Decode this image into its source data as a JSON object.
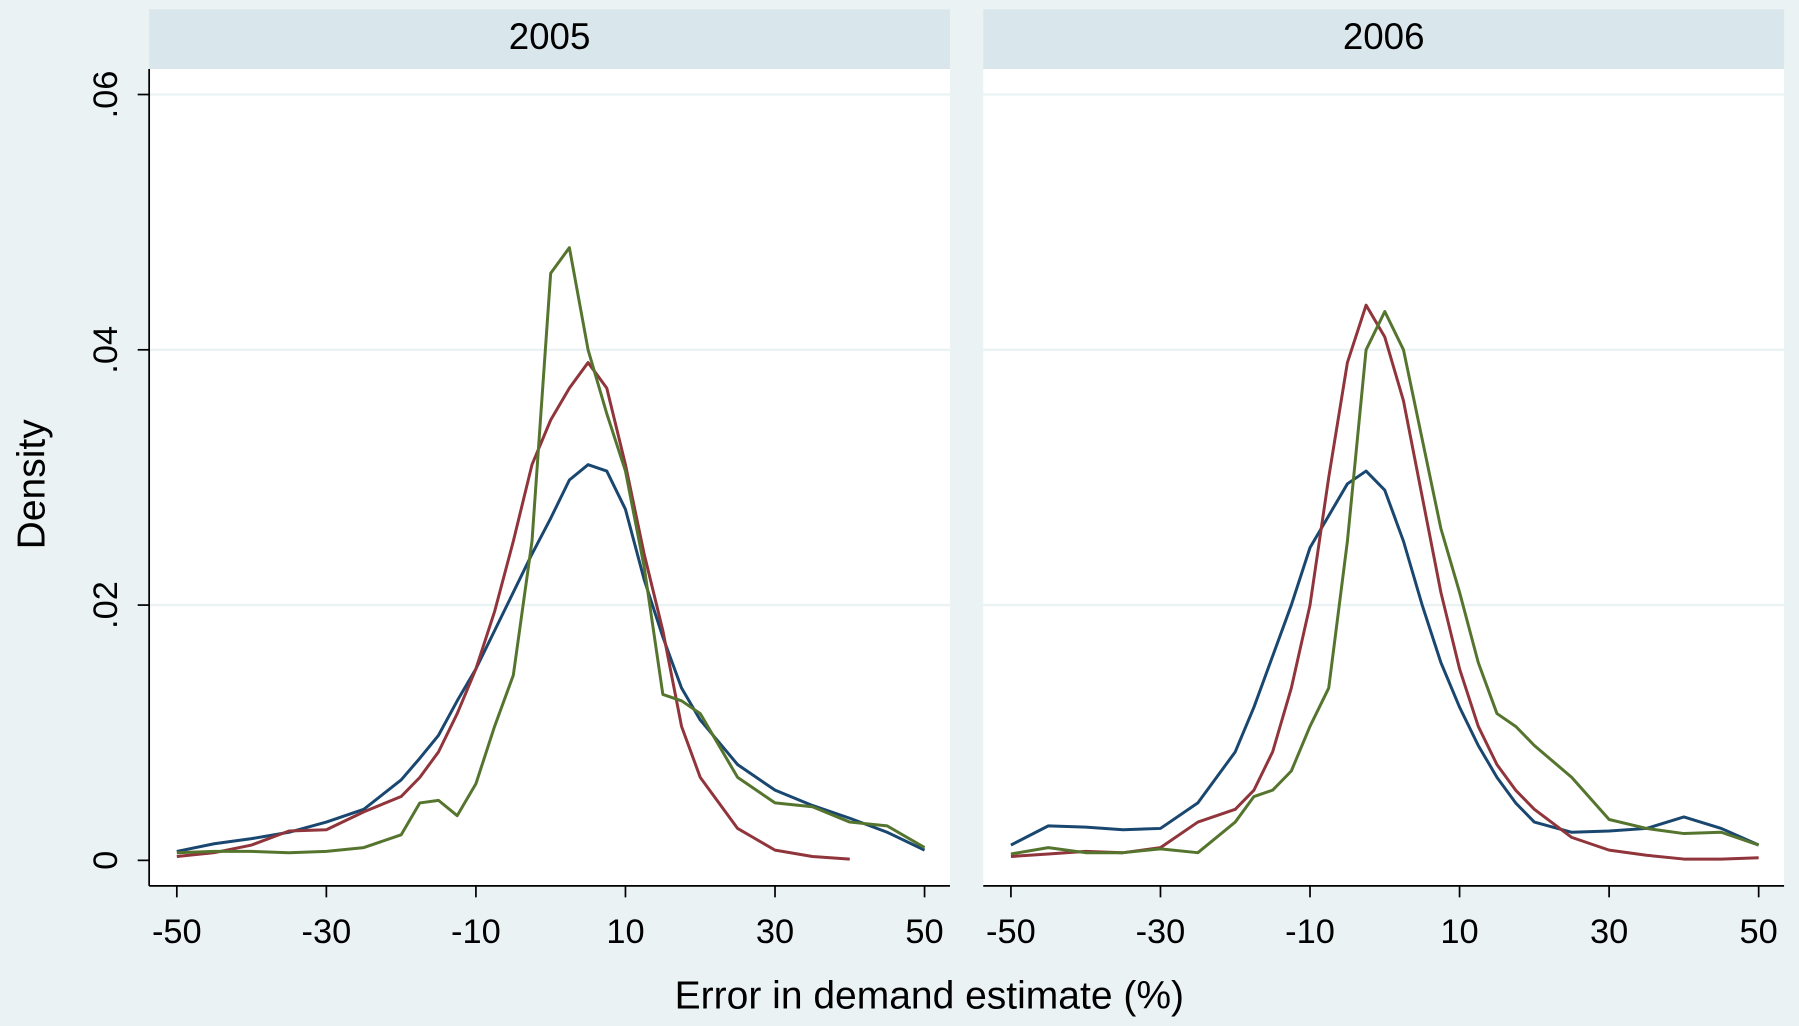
{
  "xlabel": "Error in demand estimate (%)",
  "ylabel": "Density",
  "chart_data": [
    {
      "type": "line",
      "title": "2005",
      "x": [
        -50,
        -45,
        -40,
        -35,
        -30,
        -25,
        -20,
        -17.5,
        -15,
        -12.5,
        -10,
        -7.5,
        -5,
        -2.5,
        0,
        2.5,
        5,
        7.5,
        10,
        12.5,
        15,
        17.5,
        20,
        25,
        30,
        35,
        40,
        45,
        50
      ],
      "series": [
        {
          "color": "#1a476f",
          "values": [
            0.0007,
            0.0013,
            0.0017,
            0.0022,
            0.003,
            0.004,
            0.0063,
            0.008,
            0.0098,
            0.0125,
            0.015,
            0.018,
            0.021,
            0.024,
            0.0268,
            0.0298,
            0.031,
            0.0305,
            0.0275,
            0.022,
            0.0175,
            0.0135,
            0.011,
            0.0075,
            0.0055,
            0.0043,
            0.0033,
            0.0022,
            0.0008
          ]
        },
        {
          "color": "#90353b",
          "values": [
            0.0003,
            0.0006,
            0.0012,
            0.0023,
            0.0024,
            0.0038,
            0.005,
            0.0065,
            0.0085,
            0.0115,
            0.015,
            0.0195,
            0.025,
            0.031,
            0.0345,
            0.037,
            0.039,
            0.037,
            0.031,
            0.024,
            0.018,
            0.0105,
            0.0065,
            0.0025,
            0.0008,
            0.0003,
            0.0001,
            null,
            null
          ]
        },
        {
          "color": "#55752f",
          "values": [
            0.0006,
            0.0007,
            0.0007,
            0.0006,
            0.0007,
            0.001,
            0.002,
            0.0045,
            0.0047,
            0.0035,
            0.006,
            0.0105,
            0.0145,
            0.025,
            0.046,
            0.048,
            0.04,
            0.035,
            0.0305,
            0.023,
            0.013,
            0.0125,
            0.0115,
            0.0065,
            0.0045,
            0.0042,
            0.003,
            0.0027,
            0.001
          ]
        }
      ],
      "xlim": [
        -53.7,
        53.4
      ],
      "xticks": [
        -50,
        -30,
        -10,
        10,
        30,
        50
      ],
      "ylim": [
        -0.002,
        0.062
      ],
      "yticks": [
        0,
        {
          "value": 0.02,
          "label": ".02"
        },
        {
          "value": 0.04,
          "label": ".04"
        },
        {
          "value": 0.06,
          "label": ".06"
        }
      ],
      "grid": true
    },
    {
      "type": "line",
      "title": "2006",
      "x": [
        -50,
        -45,
        -40,
        -35,
        -30,
        -25,
        -20,
        -17.5,
        -15,
        -12.5,
        -10,
        -7.5,
        -5,
        -2.5,
        0,
        2.5,
        5,
        7.5,
        10,
        12.5,
        15,
        17.5,
        20,
        25,
        30,
        35,
        40,
        45,
        50
      ],
      "series": [
        {
          "color": "#1a476f",
          "values": [
            0.0012,
            0.0027,
            0.0026,
            0.0024,
            0.0025,
            0.0045,
            0.0085,
            0.012,
            0.016,
            0.02,
            0.0245,
            0.027,
            0.0295,
            0.0305,
            0.029,
            0.025,
            0.02,
            0.0155,
            0.012,
            0.009,
            0.0065,
            0.0045,
            0.003,
            0.0022,
            0.0023,
            0.0025,
            0.0034,
            0.0025,
            0.0012
          ]
        },
        {
          "color": "#90353b",
          "values": [
            0.0003,
            0.0005,
            0.0007,
            0.0006,
            0.001,
            0.003,
            0.004,
            0.0055,
            0.0085,
            0.0135,
            0.02,
            0.03,
            0.039,
            0.0435,
            0.041,
            0.036,
            0.0285,
            0.021,
            0.015,
            0.0105,
            0.0075,
            0.0055,
            0.004,
            0.0018,
            0.0008,
            0.0004,
            0.0001,
            0.0001,
            0.0002
          ]
        },
        {
          "color": "#55752f",
          "values": [
            0.0005,
            0.001,
            0.0006,
            0.0006,
            0.0009,
            0.0006,
            0.003,
            0.005,
            0.0055,
            0.007,
            0.0105,
            0.0135,
            0.025,
            0.04,
            0.043,
            0.04,
            0.033,
            0.026,
            0.021,
            0.0155,
            0.0115,
            0.0105,
            0.009,
            0.0065,
            0.0032,
            0.0025,
            0.0021,
            0.0022,
            0.0012
          ]
        }
      ],
      "xlim": [
        -53.7,
        53.4
      ],
      "xticks": [
        -50,
        -30,
        -10,
        10,
        30,
        50
      ],
      "grid": true
    }
  ]
}
